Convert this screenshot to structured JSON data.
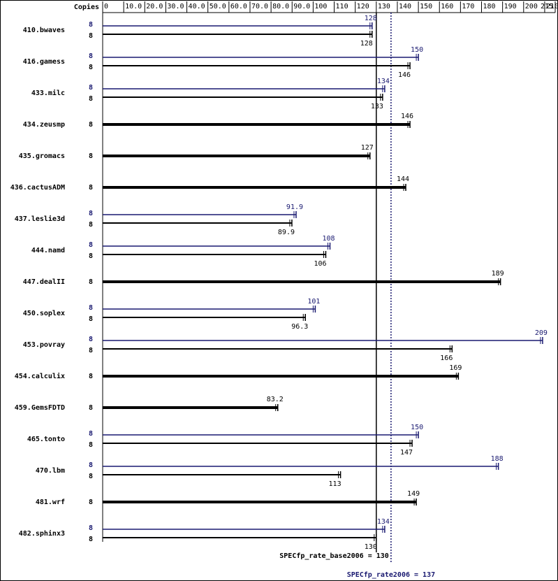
{
  "chart_data": {
    "type": "spec-bar",
    "x_header": "Copies",
    "categories": [
      "410.bwaves",
      "416.gamess",
      "433.milc",
      "434.zeusmp",
      "435.gromacs",
      "436.cactusADM",
      "437.leslie3d",
      "444.namd",
      "447.dealII",
      "450.soplex",
      "453.povray",
      "454.calculix",
      "459.GemsFDTD",
      "465.tonto",
      "470.lbm",
      "481.wrf",
      "482.sphinx3"
    ],
    "series": [
      {
        "name": "base",
        "color": "#000000",
        "copies": [
          8,
          8,
          8,
          8,
          8,
          8,
          8,
          8,
          8,
          8,
          8,
          8,
          8,
          8,
          8,
          8,
          8
        ],
        "values": [
          128,
          146,
          133,
          146,
          127,
          144,
          89.9,
          106,
          189,
          96.3,
          166,
          169,
          83.2,
          147,
          113,
          149,
          130
        ]
      },
      {
        "name": "peak",
        "color": "#191970",
        "copies": [
          8,
          8,
          8,
          null,
          null,
          null,
          8,
          8,
          null,
          8,
          8,
          null,
          null,
          8,
          8,
          null,
          8
        ],
        "values": [
          128,
          150,
          134,
          null,
          null,
          null,
          91.9,
          108,
          null,
          101,
          209,
          null,
          null,
          150,
          188,
          null,
          134
        ]
      }
    ],
    "xlim": [
      0,
      215
    ],
    "xticks": [
      0,
      {
        "value": 10,
        "label": "10.0"
      },
      {
        "value": 20,
        "label": "20.0"
      },
      {
        "value": 30,
        "label": "30.0"
      },
      {
        "value": 40,
        "label": "40.0"
      },
      {
        "value": 50,
        "label": "50.0"
      },
      {
        "value": 60,
        "label": "60.0"
      },
      {
        "value": 70,
        "label": "70.0"
      },
      {
        "value": 80,
        "label": "80.0"
      },
      {
        "value": 90,
        "label": "90.0"
      },
      100,
      110,
      120,
      130,
      140,
      150,
      160,
      170,
      180,
      190,
      200,
      210,
      215
    ],
    "reference_lines": [
      {
        "label": "SPECfp_rate_base2006 = 130",
        "value": 130,
        "color": "#000000"
      },
      {
        "label": "SPECfp_rate2006 = 137",
        "value": 137,
        "color": "#191970"
      }
    ]
  }
}
